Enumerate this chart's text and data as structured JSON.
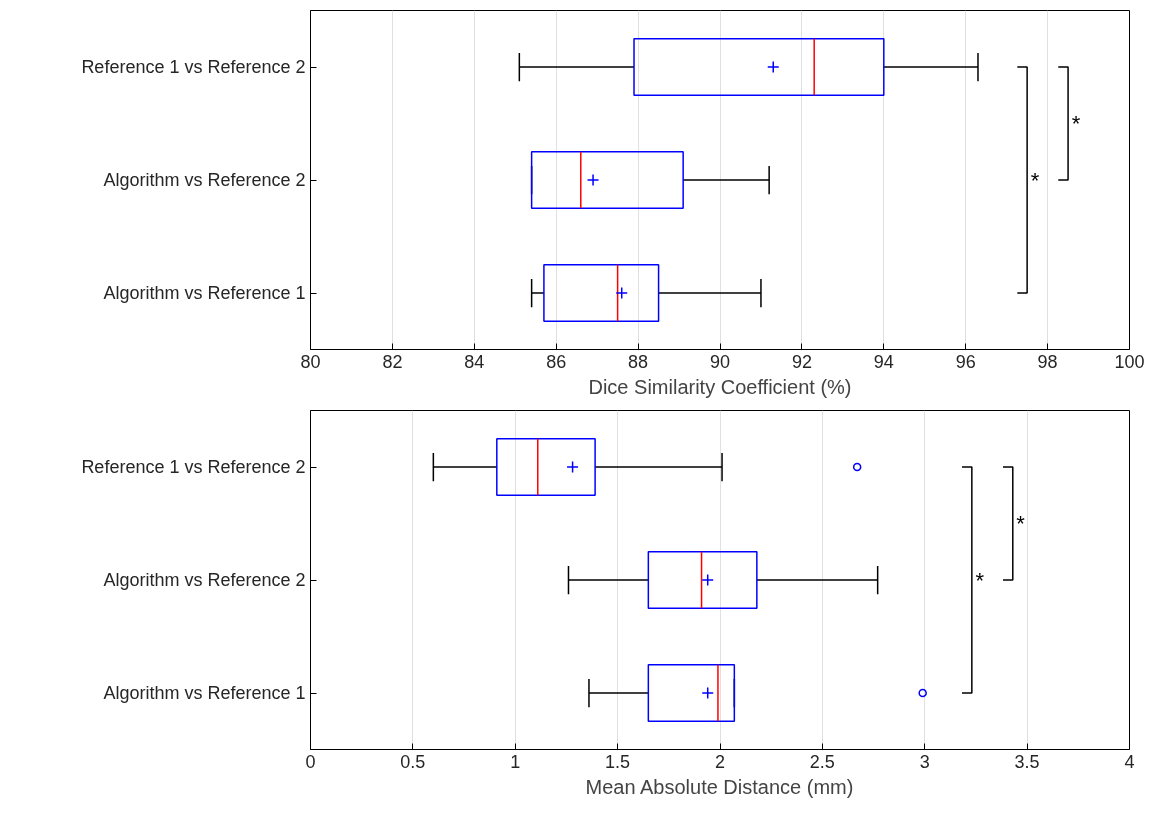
{
  "chart_data": [
    {
      "type": "box",
      "orientation": "horizontal",
      "categories": [
        "Reference 1 vs Reference 2",
        "Algorithm vs Reference 2",
        "Algorithm vs Reference 1"
      ],
      "boxes": [
        {
          "low": 85.1,
          "q1": 87.9,
          "median": 92.3,
          "q3": 94.0,
          "high": 96.3,
          "mean": 91.3
        },
        {
          "low": 85.4,
          "q1": 85.4,
          "median": 86.6,
          "q3": 89.1,
          "high": 91.2,
          "mean": 86.9
        },
        {
          "low": 85.4,
          "q1": 85.7,
          "median": 87.5,
          "q3": 88.5,
          "high": 91.0,
          "mean": 87.6
        }
      ],
      "xlim": [
        80,
        100
      ],
      "xticks": [
        80,
        82,
        84,
        86,
        88,
        90,
        92,
        94,
        96,
        98,
        100
      ],
      "xlabel": "Dice Similarity Coefficient (%)",
      "grid": "x",
      "annotations": [
        "*",
        "*"
      ]
    },
    {
      "type": "box",
      "orientation": "horizontal",
      "categories": [
        "Reference 1 vs Reference 2",
        "Algorithm vs Reference 2",
        "Algorithm vs Reference 1"
      ],
      "boxes": [
        {
          "low": 0.6,
          "q1": 0.91,
          "median": 1.11,
          "q3": 1.39,
          "high": 2.01,
          "mean": 1.28,
          "outliers": [
            2.67
          ]
        },
        {
          "low": 1.26,
          "q1": 1.65,
          "median": 1.91,
          "q3": 2.18,
          "high": 2.77,
          "mean": 1.94
        },
        {
          "low": 1.36,
          "q1": 1.65,
          "median": 1.99,
          "q3": 2.07,
          "high": 2.07,
          "mean": 1.94,
          "outliers": [
            2.99
          ]
        }
      ],
      "xlim": [
        0,
        4
      ],
      "xticks": [
        0,
        0.5,
        1,
        1.5,
        2,
        2.5,
        3,
        3.5,
        4
      ],
      "xlabel": "Mean Absolute Distance (mm)",
      "grid": "x",
      "annotations": [
        "*",
        "*"
      ]
    }
  ]
}
